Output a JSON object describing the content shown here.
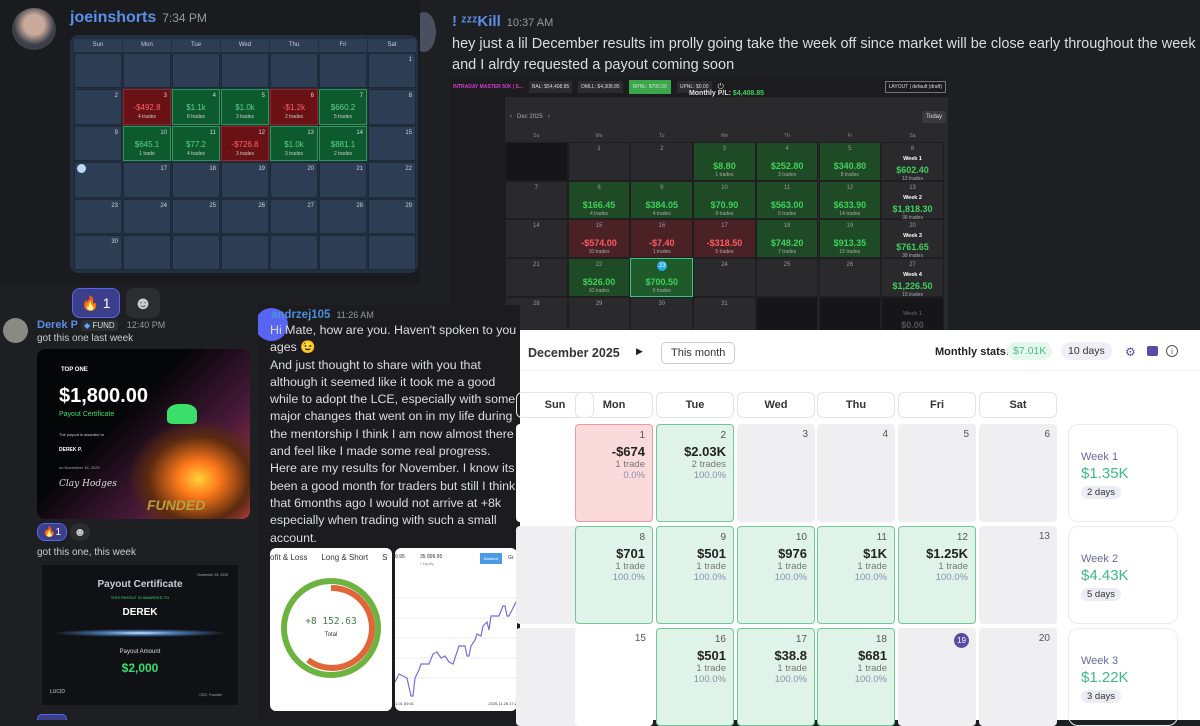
{
  "post1": {
    "username": "joeinshorts",
    "time": "7:34 PM",
    "calendar": {
      "weekdays": [
        "Sun",
        "Mon",
        "Tue",
        "Wed",
        "Thu",
        "Fri",
        "Sat"
      ],
      "weeks": [
        [
          null,
          null,
          null,
          null,
          null,
          null,
          {
            "day": "1"
          }
        ],
        [
          {
            "day": "2"
          },
          {
            "day": "3",
            "pnl": "-$492.8",
            "trades": "4 trades",
            "tone": "r"
          },
          {
            "day": "4",
            "pnl": "$1.1k",
            "trades": "8 trades",
            "tone": "g"
          },
          {
            "day": "5",
            "pnl": "$1.0k",
            "trades": "3 trades",
            "tone": "g"
          },
          {
            "day": "6",
            "pnl": "-$1.2k",
            "trades": "2 trades",
            "tone": "r"
          },
          {
            "day": "7",
            "pnl": "$660.2",
            "trades": "5 trades",
            "tone": "g"
          },
          {
            "day": "8"
          }
        ],
        [
          {
            "day": "9"
          },
          {
            "day": "10",
            "pnl": "$645.1",
            "trades": "1 trade",
            "tone": "g"
          },
          {
            "day": "11",
            "pnl": "$77.2",
            "trades": "4 trades",
            "tone": "g"
          },
          {
            "day": "12",
            "pnl": "-$726.8",
            "trades": "3 trades",
            "tone": "r"
          },
          {
            "day": "13",
            "pnl": "$1.0k",
            "trades": "3 trades",
            "tone": "g"
          },
          {
            "day": "14",
            "pnl": "$881.1",
            "trades": "2 trades",
            "tone": "g"
          },
          {
            "day": "15"
          }
        ],
        [
          {
            "day": "16",
            "today": true
          },
          {
            "day": "17"
          },
          {
            "day": "18"
          },
          {
            "day": "19"
          },
          {
            "day": "20"
          },
          {
            "day": "21"
          },
          {
            "day": "22"
          }
        ],
        [
          {
            "day": "23"
          },
          {
            "day": "24"
          },
          {
            "day": "25"
          },
          {
            "day": "26"
          },
          {
            "day": "27"
          },
          {
            "day": "28"
          },
          {
            "day": "29"
          }
        ],
        [
          {
            "day": "30"
          },
          null,
          null,
          null,
          null,
          null,
          null
        ]
      ]
    },
    "reactions": [
      {
        "emoji": "🔥",
        "count": "1"
      },
      {
        "emoji": "☻"
      }
    ]
  },
  "post2": {
    "username": "! ᶻᶻᶻKill",
    "time": "10:37 AM",
    "text": [
      "hey just a lil December results im prolly going take the week off since market will be close early throughout the week",
      "and I alrdy requested a payout coming soon"
    ],
    "toolbar": {
      "account": "INTRADAY MASTER 50K | S...",
      "bal": "BAL: $54,408.85",
      "dmll": "DMLL: $4,308.85",
      "rpnl": "RPNL: $700.50",
      "upnl": "UPNL: $0.00",
      "layout": "LAYOUT | default (draft)"
    },
    "monthly_label": "Monthly P/L:",
    "monthly_value": "$4,408.85",
    "month": "Dec 2025",
    "today_button": "Today",
    "weekdays": [
      "Su",
      "Mo",
      "Tu",
      "We",
      "Th",
      "Fr",
      "Sa"
    ],
    "weeks": [
      [
        {
          "tone": "x"
        },
        {
          "day": "1"
        },
        {
          "day": "2"
        },
        {
          "day": "3",
          "pnl": "$8.80",
          "trades": "1 trades",
          "tone": "g"
        },
        {
          "day": "4",
          "pnl": "$252.80",
          "trades": "3 trades",
          "tone": "g"
        },
        {
          "day": "5",
          "pnl": "$340.80",
          "trades": "8 trades",
          "tone": "g"
        },
        {
          "day": "6",
          "week": "Week 1",
          "pnl": "$602.40",
          "trades": "12 trades"
        }
      ],
      [
        {
          "day": "7"
        },
        {
          "day": "8",
          "pnl": "$166.45",
          "trades": "4 trades",
          "tone": "g"
        },
        {
          "day": "9",
          "pnl": "$384.05",
          "trades": "4 trades",
          "tone": "g"
        },
        {
          "day": "10",
          "pnl": "$70.90",
          "trades": "9 trades",
          "tone": "g"
        },
        {
          "day": "11",
          "pnl": "$563.00",
          "trades": "5 trades",
          "tone": "g"
        },
        {
          "day": "12",
          "pnl": "$633.90",
          "trades": "14 trades",
          "tone": "g"
        },
        {
          "day": "13",
          "week": "Week 2",
          "pnl": "$1,818.30",
          "trades": "36 trades"
        }
      ],
      [
        {
          "day": "14"
        },
        {
          "day": "15",
          "pnl": "-$574.00",
          "trades": "10 trades",
          "tone": "r"
        },
        {
          "day": "16",
          "pnl": "-$7.40",
          "trades": "1 trades",
          "tone": "r"
        },
        {
          "day": "17",
          "pnl": "-$318.50",
          "trades": "5 trades",
          "tone": "r"
        },
        {
          "day": "18",
          "pnl": "$748.20",
          "trades": "7 trades",
          "tone": "g"
        },
        {
          "day": "19",
          "pnl": "$913.35",
          "trades": "15 trades",
          "tone": "g"
        },
        {
          "day": "20",
          "week": "Week 3",
          "pnl": "$761.65",
          "trades": "38 trades"
        }
      ],
      [
        {
          "day": "21"
        },
        {
          "day": "22",
          "pnl": "$526.00",
          "trades": "10 trades",
          "tone": "g"
        },
        {
          "day": "23",
          "pnl": "$700.50",
          "trades": "5 trades",
          "tone": "today"
        },
        {
          "day": "24"
        },
        {
          "day": "25"
        },
        {
          "day": "26"
        },
        {
          "day": "27",
          "week": "Week 4",
          "pnl": "$1,226.50",
          "trades": "15 trades"
        }
      ],
      [
        {
          "day": "28"
        },
        {
          "day": "29"
        },
        {
          "day": "30"
        },
        {
          "day": "31"
        },
        {
          "tone": "x"
        },
        {
          "tone": "x"
        },
        {
          "week": "Week 1",
          "pnl": "$0.00",
          "tone": "x"
        }
      ]
    ]
  },
  "post3": {
    "username": "Derek P",
    "badge": "FUND",
    "time": "12:40 PM",
    "text1": "got this one last week",
    "cert1": {
      "brand": "TOP ONE",
      "amount": "$1,800.00",
      "title": "Payout Certificate",
      "awarded": "The payout is awarded to",
      "name": "DEREK P.",
      "date": "on November 18, 2025",
      "signature": "Clay Hodges",
      "stamp": "FUNDED"
    },
    "reactions": [
      {
        "emoji": "🔥",
        "count": "1"
      },
      {
        "emoji": "☻"
      }
    ],
    "text2": "got this one, this week",
    "cert2": {
      "date": "November 25, 2025",
      "title": "Payout Certificate",
      "awarded": "THIS PAYOUT IS AWARDED TO",
      "name": "DEREK",
      "amount_label": "Payout Amount",
      "amount": "$2,000",
      "brand": "LUCID",
      "role": "CEO, Founder"
    }
  },
  "post4": {
    "username": "andrzej105",
    "time": "11:26 AM",
    "lines": [
      "Hi Mate, how are you. Haven't spoken to you in",
      "ages 😉",
      "And just thought to share with you that",
      "although it seemed like it took me a good",
      "while to adopt the LCE, especially with some",
      "major changes that went on in my life during",
      "the mentorship I think I am now almost there",
      "and feel like I made some real progress.",
      "Here are my results for November. I know its",
      "been a good month for traders but still I think",
      "that 6months ago I would not arrive at +8k",
      "especially when trading with such a small",
      "account."
    ],
    "img1": {
      "tabs": [
        "ofit & Loss",
        "Long & Short",
        "S"
      ],
      "total": "+8 152.63",
      "total_label": "Total"
    },
    "img2": {
      "val1": "9.95",
      "val2": "35 899.95",
      "legend": "Equity",
      "button": "Balance",
      "tab": "Gr",
      "x_start": "1.01 00:01",
      "x_end": "2025.11.26 17:2"
    }
  },
  "post5": {
    "month": "December 2025",
    "this_month": "This month",
    "stats_label": "Monthly stats:",
    "stats_value": "$7.01K",
    "stats_days": "10 days",
    "weekdays": [
      "Sun",
      "Mon",
      "Tue",
      "Wed",
      "Thu",
      "Fri",
      "Sat"
    ],
    "weeks": [
      [
        {
          "tone": "w"
        },
        {
          "day": "1",
          "pnl": "-$674",
          "trades": "1 trade",
          "pct": "0.0%",
          "tone": "r"
        },
        {
          "day": "2",
          "pnl": "$2.03K",
          "trades": "2 trades",
          "pct": "100.0%",
          "tone": "g"
        },
        {
          "day": "3"
        },
        {
          "day": "4"
        },
        {
          "day": "5"
        },
        {
          "day": "6"
        }
      ],
      [
        {
          "day": "7"
        },
        {
          "day": "8",
          "pnl": "$701",
          "trades": "1 trade",
          "pct": "100.0%",
          "tone": "g"
        },
        {
          "day": "9",
          "pnl": "$501",
          "trades": "1 trade",
          "pct": "100.0%",
          "tone": "g"
        },
        {
          "day": "10",
          "pnl": "$976",
          "trades": "1 trade",
          "pct": "100.0%",
          "tone": "g"
        },
        {
          "day": "11",
          "pnl": "$1K",
          "trades": "1 trade",
          "pct": "100.0%",
          "tone": "g"
        },
        {
          "day": "12",
          "pnl": "$1.25K",
          "trades": "1 trade",
          "pct": "100.0%",
          "tone": "g"
        },
        {
          "day": "13"
        }
      ],
      [
        {
          "day": "14"
        },
        {
          "day": "15",
          "tone": "w"
        },
        {
          "day": "16",
          "pnl": "$501",
          "trades": "1 trade",
          "pct": "100.0%",
          "tone": "g"
        },
        {
          "day": "17",
          "pnl": "$38.8",
          "trades": "1 trade",
          "pct": "100.0%",
          "tone": "g"
        },
        {
          "day": "18",
          "pnl": "$681",
          "trades": "1 trade",
          "pct": "100.0%",
          "tone": "g"
        },
        {
          "day": "19",
          "today": true
        },
        {
          "day": "20"
        }
      ]
    ],
    "week_summaries": [
      {
        "label": "Week 1",
        "value": "$1.35K",
        "days": "2 days"
      },
      {
        "label": "Week 2",
        "value": "$4.43K",
        "days": "5 days"
      },
      {
        "label": "Week 3",
        "value": "$1.22K",
        "days": "3 days"
      }
    ]
  }
}
